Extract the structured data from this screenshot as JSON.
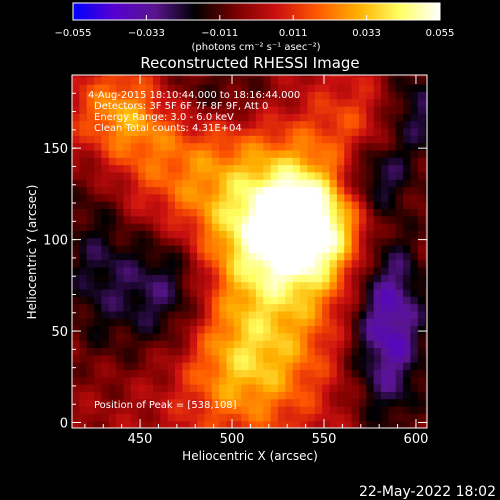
{
  "chart_data": {
    "type": "heatmap",
    "title": "Reconstructed RHESSI Image",
    "xlabel": "Heliocentric X (arcsec)",
    "ylabel": "Heliocentric Y (arcsec)",
    "xlim": [
      413,
      606
    ],
    "ylim": [
      -3,
      190
    ],
    "x_ticks": [
      450,
      500,
      550,
      600
    ],
    "y_ticks": [
      0,
      50,
      100,
      150
    ],
    "colorbar": {
      "range": [
        -0.055,
        0.055
      ],
      "ticks": [
        "−0.055",
        "−0.033",
        "−0.011",
        "0.011",
        "0.033",
        "0.055"
      ],
      "unit": "(photons cm⁻² s⁻¹ asec⁻²)",
      "colormap": [
        "#0000ff",
        "#5500d0",
        "#5a1590",
        "#000000",
        "#7a0000",
        "#cc1010",
        "#ff5a00",
        "#ffb000",
        "#ffff60",
        "#ffffff"
      ]
    },
    "annotations": {
      "time": "4-Aug-2015 18:10:44.000 to 18:16:44.000",
      "detectors": "Detectors: 3F 5F 6F 7F 8F 9F, Att 0",
      "energy": "Energy Range: 3.0 - 6.0 keV",
      "clean": "Clean     Total counts: 4.31E+04",
      "peak": "Position of Peak = [538,108]"
    },
    "peak": [
      538,
      108
    ],
    "peak_value": 0.055,
    "sources": [
      {
        "x": 538,
        "y": 108,
        "amp": 0.055,
        "sx": 22,
        "sy": 22
      },
      {
        "x": 520,
        "y": 95,
        "amp": 0.03,
        "sx": 30,
        "sy": 50
      },
      {
        "x": 470,
        "y": 120,
        "amp": 0.025,
        "sx": 25,
        "sy": 35
      },
      {
        "x": 440,
        "y": 170,
        "amp": 0.03,
        "sx": 18,
        "sy": 18
      },
      {
        "x": 505,
        "y": 30,
        "amp": 0.025,
        "sx": 25,
        "sy": 25
      },
      {
        "x": 570,
        "y": 160,
        "amp": 0.015,
        "sx": 18,
        "sy": 22
      },
      {
        "x": 465,
        "y": 80,
        "amp": -0.04,
        "sx": 20,
        "sy": 30
      },
      {
        "x": 585,
        "y": 55,
        "amp": -0.04,
        "sx": 15,
        "sy": 40
      },
      {
        "x": 575,
        "y": 135,
        "amp": -0.03,
        "sx": 15,
        "sy": 15
      },
      {
        "x": 425,
        "y": 90,
        "amp": -0.02,
        "sx": 15,
        "sy": 40
      },
      {
        "x": 490,
        "y": 180,
        "amp": -0.02,
        "sx": 30,
        "sy": 15
      },
      {
        "x": 600,
        "y": 170,
        "amp": -0.025,
        "sx": 15,
        "sy": 20
      }
    ]
  },
  "footer": {
    "timestamp": "22-May-2022 18:02"
  }
}
